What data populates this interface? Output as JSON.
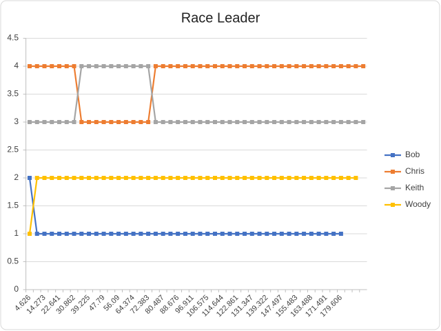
{
  "chart_data": {
    "type": "line",
    "title": "Race Leader",
    "categories": [
      "4.626",
      null,
      "14.273",
      null,
      "22.641",
      null,
      "30.862",
      null,
      "39.225",
      null,
      "47.79",
      null,
      "56.09",
      null,
      "64.374",
      null,
      "72.383",
      null,
      "80.487",
      null,
      "88.676",
      null,
      "96.911",
      null,
      "106.575",
      null,
      "114.644",
      null,
      "122.861",
      null,
      "131.347",
      null,
      "139.322",
      null,
      "147.497",
      null,
      "155.483",
      null,
      "163.488",
      null,
      "171.491",
      null,
      "179.606",
      null,
      null,
      null
    ],
    "series": [
      {
        "name": "Bob",
        "color": "#4472c4",
        "values": [
          2,
          1,
          1,
          1,
          1,
          1,
          1,
          1,
          1,
          1,
          1,
          1,
          1,
          1,
          1,
          1,
          1,
          1,
          1,
          1,
          1,
          1,
          1,
          1,
          1,
          1,
          1,
          1,
          1,
          1,
          1,
          1,
          1,
          1,
          1,
          1,
          1,
          1,
          1,
          1,
          1,
          1,
          1,
          null,
          null,
          null
        ]
      },
      {
        "name": "Chris",
        "color": "#ed7d31",
        "values": [
          4,
          4,
          4,
          4,
          4,
          4,
          4,
          3,
          3,
          3,
          3,
          3,
          3,
          3,
          3,
          3,
          3,
          4,
          4,
          4,
          4,
          4,
          4,
          4,
          4,
          4,
          4,
          4,
          4,
          4,
          4,
          4,
          4,
          4,
          4,
          4,
          4,
          4,
          4,
          4,
          4,
          4,
          4,
          4,
          4,
          4
        ]
      },
      {
        "name": "Keith",
        "color": "#a5a5a5",
        "values": [
          3,
          3,
          3,
          3,
          3,
          3,
          3,
          4,
          4,
          4,
          4,
          4,
          4,
          4,
          4,
          4,
          4,
          3,
          3,
          3,
          3,
          3,
          3,
          3,
          3,
          3,
          3,
          3,
          3,
          3,
          3,
          3,
          3,
          3,
          3,
          3,
          3,
          3,
          3,
          3,
          3,
          3,
          3,
          3,
          3,
          3
        ]
      },
      {
        "name": "Woody",
        "color": "#ffc000",
        "values": [
          1,
          2,
          2,
          2,
          2,
          2,
          2,
          2,
          2,
          2,
          2,
          2,
          2,
          2,
          2,
          2,
          2,
          2,
          2,
          2,
          2,
          2,
          2,
          2,
          2,
          2,
          2,
          2,
          2,
          2,
          2,
          2,
          2,
          2,
          2,
          2,
          2,
          2,
          2,
          2,
          2,
          2,
          2,
          2,
          2,
          null
        ]
      }
    ],
    "ylim": [
      0,
      4.5
    ],
    "yticks": [
      0,
      0.5,
      1,
      1.5,
      2,
      2.5,
      3,
      3.5,
      4,
      4.5
    ],
    "grid": true,
    "legend": "right"
  }
}
